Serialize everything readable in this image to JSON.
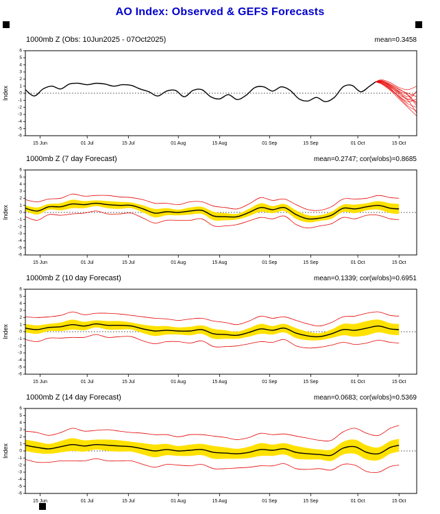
{
  "page": {
    "title": "AO Index: Observed & GEFS Forecasts"
  },
  "colors": {
    "title_blue": "#0000cc",
    "line_black": "#000000",
    "ensemble_red": "#e60000",
    "band_yellow": "#ffe100",
    "frame_black": "#000000"
  },
  "axis": {
    "ylabel": "Index",
    "ylim": [
      -6,
      6
    ],
    "yticks": [
      6,
      5,
      4,
      3,
      2,
      1,
      0,
      -1,
      -2,
      -3,
      -4,
      -5,
      -6
    ],
    "x_unit": "days since 10 Jun 2025",
    "x_domain_days": [
      0,
      133
    ],
    "xticks": [
      {
        "day": 5,
        "label": "15 Jun"
      },
      {
        "day": 21,
        "label": "01 Jul"
      },
      {
        "day": 35,
        "label": "15 Jul"
      },
      {
        "day": 52,
        "label": "01 Aug"
      },
      {
        "day": 66,
        "label": "15 Aug"
      },
      {
        "day": 83,
        "label": "01 Sep"
      },
      {
        "day": 97,
        "label": "15 Sep"
      },
      {
        "day": 113,
        "label": "01 Oct"
      },
      {
        "day": 127,
        "label": "15 Oct"
      }
    ],
    "grid": "zero-line-dotted-only"
  },
  "chart_data": [
    {
      "type": "line",
      "title": "1000mb Z (Obs: 10Jun2025 - 07Oct2025)",
      "stats": "mean=0.3458",
      "x": [
        0,
        3,
        6,
        9,
        12,
        15,
        18,
        21,
        24,
        27,
        30,
        33,
        36,
        39,
        42,
        45,
        48,
        51,
        54,
        57,
        60,
        63,
        66,
        69,
        72,
        75,
        78,
        81,
        84,
        87,
        90,
        93,
        96,
        99,
        102,
        105,
        108,
        111,
        114,
        117,
        119
      ],
      "series": [
        {
          "name": "observed",
          "color": "#000000",
          "values": [
            0.5,
            -0.4,
            0.6,
            1.0,
            0.6,
            1.3,
            1.4,
            1.2,
            1.4,
            1.3,
            1.0,
            1.2,
            1.1,
            0.6,
            0.2,
            -0.4,
            0.3,
            0.4,
            -0.5,
            0.4,
            0.5,
            -0.5,
            -0.8,
            -0.2,
            -0.9,
            -0.3,
            0.8,
            0.9,
            0.3,
            0.9,
            0.4,
            -0.8,
            -1.1,
            -0.6,
            -1.2,
            -0.6,
            0.9,
            1.1,
            0.2,
            1.0,
            1.6
          ]
        }
      ],
      "ensemble_members": {
        "name": "gefs-forecast-members",
        "color": "#e60000",
        "x": [
          119,
          121,
          124,
          127,
          130,
          133
        ],
        "members": [
          [
            1.6,
            1.9,
            1.5,
            0.8,
            0.5,
            1.0
          ],
          [
            1.6,
            1.7,
            1.2,
            0.5,
            0.0,
            -0.5
          ],
          [
            1.6,
            1.5,
            0.8,
            0.0,
            -0.8,
            -1.2
          ],
          [
            1.6,
            1.8,
            1.0,
            0.2,
            -0.5,
            0.2
          ],
          [
            1.6,
            1.4,
            0.5,
            -0.5,
            -1.5,
            -2.0
          ],
          [
            1.6,
            1.6,
            0.9,
            -0.2,
            -1.0,
            -2.8
          ],
          [
            1.6,
            1.3,
            0.4,
            -0.8,
            -2.0,
            -3.2
          ],
          [
            1.6,
            1.7,
            1.1,
            0.3,
            -0.3,
            -1.8
          ],
          [
            1.6,
            1.5,
            0.6,
            -0.4,
            -1.2,
            -0.8
          ],
          [
            1.6,
            1.8,
            1.3,
            0.6,
            -0.2,
            -1.5
          ],
          [
            1.6,
            1.4,
            0.7,
            -0.6,
            -1.8,
            -2.5
          ],
          [
            1.6,
            1.6,
            1.0,
            0.1,
            -0.9,
            0.3
          ]
        ]
      }
    },
    {
      "type": "line",
      "title": "1000mb Z (7 day Forecast)",
      "stats": "mean=0.2747; cor(w/obs)=0.8685",
      "x": [
        0,
        4,
        8,
        12,
        16,
        20,
        24,
        28,
        32,
        36,
        40,
        44,
        48,
        52,
        56,
        60,
        64,
        68,
        72,
        76,
        80,
        84,
        88,
        92,
        96,
        100,
        104,
        108,
        112,
        116,
        120,
        124,
        127
      ],
      "series": [
        {
          "name": "forecast-mean",
          "color": "#000000",
          "values": [
            0.6,
            0.2,
            0.8,
            0.8,
            1.2,
            1.1,
            1.3,
            1.1,
            1.0,
            1.0,
            0.5,
            -0.1,
            0.1,
            0.0,
            0.2,
            0.3,
            -0.5,
            -0.6,
            -0.6,
            0.0,
            0.7,
            0.4,
            0.7,
            -0.3,
            -0.9,
            -0.8,
            -0.4,
            0.6,
            0.5,
            0.8,
            1.0,
            0.6,
            0.5
          ]
        }
      ],
      "band": {
        "name": "ensemble-spread",
        "color": "#ffe100",
        "half_width": [
          0.4,
          0.5,
          0.4,
          0.5,
          0.6,
          0.5,
          0.4,
          0.5,
          0.5,
          0.4,
          0.5,
          0.6,
          0.5,
          0.4,
          0.5,
          0.5,
          0.6,
          0.5,
          0.4,
          0.5,
          0.6,
          0.5,
          0.5,
          0.6,
          0.5,
          0.4,
          0.5,
          0.5,
          0.6,
          0.5,
          0.6,
          0.7,
          0.7
        ]
      },
      "envelope": {
        "name": "ensemble-min-max",
        "color": "#e60000",
        "half_width": [
          1.2,
          1.3,
          1.1,
          1.2,
          1.4,
          1.2,
          1.1,
          1.3,
          1.2,
          1.1,
          1.3,
          1.4,
          1.2,
          1.1,
          1.3,
          1.2,
          1.4,
          1.3,
          1.1,
          1.2,
          1.4,
          1.3,
          1.2,
          1.4,
          1.3,
          1.1,
          1.2,
          1.3,
          1.4,
          1.2,
          1.4,
          1.5,
          1.5
        ]
      }
    },
    {
      "type": "line",
      "title": "1000mb Z (10 day Forecast)",
      "stats": "mean=0.1339; cor(w/obs)=0.6951",
      "x": [
        0,
        4,
        8,
        12,
        16,
        20,
        24,
        28,
        32,
        36,
        40,
        44,
        48,
        52,
        56,
        60,
        64,
        68,
        72,
        76,
        80,
        84,
        88,
        92,
        96,
        100,
        104,
        108,
        112,
        116,
        120,
        124,
        127
      ],
      "series": [
        {
          "name": "forecast-mean",
          "color": "#000000",
          "values": [
            0.5,
            0.3,
            0.6,
            0.7,
            1.0,
            0.8,
            1.1,
            0.9,
            0.9,
            0.8,
            0.4,
            0.1,
            0.2,
            0.1,
            0.1,
            0.3,
            -0.3,
            -0.4,
            -0.5,
            -0.1,
            0.4,
            0.2,
            0.5,
            -0.2,
            -0.6,
            -0.7,
            -0.3,
            0.3,
            0.2,
            0.5,
            0.8,
            0.4,
            0.3
          ]
        }
      ],
      "band": {
        "name": "ensemble-spread",
        "color": "#ffe100",
        "half_width": [
          0.6,
          0.6,
          0.5,
          0.6,
          0.7,
          0.6,
          0.5,
          0.6,
          0.6,
          0.5,
          0.6,
          0.7,
          0.6,
          0.5,
          0.6,
          0.6,
          0.7,
          0.6,
          0.5,
          0.6,
          0.7,
          0.6,
          0.6,
          0.7,
          0.6,
          0.5,
          0.6,
          0.8,
          0.9,
          1.0,
          0.9,
          0.8,
          0.8
        ]
      },
      "envelope": {
        "name": "ensemble-min-max",
        "color": "#e60000",
        "half_width": [
          1.6,
          1.7,
          1.5,
          1.6,
          1.8,
          1.6,
          1.5,
          1.7,
          1.6,
          1.5,
          1.7,
          1.8,
          1.6,
          1.5,
          1.7,
          1.6,
          1.8,
          1.7,
          1.5,
          1.6,
          1.8,
          1.7,
          1.6,
          1.8,
          1.7,
          1.5,
          1.6,
          1.8,
          2.0,
          2.1,
          2.0,
          1.9,
          1.9
        ]
      }
    },
    {
      "type": "line",
      "title": "1000mb Z (14 day Forecast)",
      "stats": "mean=0.0683; cor(w/obs)=0.5369",
      "x": [
        0,
        4,
        8,
        12,
        16,
        20,
        24,
        28,
        32,
        36,
        40,
        44,
        48,
        52,
        56,
        60,
        64,
        68,
        72,
        76,
        80,
        84,
        88,
        92,
        96,
        100,
        104,
        108,
        112,
        116,
        120,
        124,
        127
      ],
      "series": [
        {
          "name": "forecast-mean",
          "color": "#000000",
          "values": [
            0.8,
            0.5,
            0.3,
            0.6,
            0.9,
            0.7,
            0.9,
            0.8,
            0.7,
            0.6,
            0.3,
            0.0,
            0.2,
            0.0,
            0.1,
            0.2,
            -0.2,
            -0.3,
            -0.4,
            -0.2,
            0.2,
            0.1,
            0.3,
            -0.2,
            -0.4,
            -0.5,
            -0.6,
            0.4,
            0.6,
            -0.2,
            -0.4,
            0.5,
            0.8
          ]
        }
      ],
      "band": {
        "name": "ensemble-spread",
        "color": "#ffe100",
        "half_width": [
          0.8,
          0.8,
          0.7,
          0.8,
          0.9,
          0.8,
          0.7,
          0.8,
          0.8,
          0.7,
          0.8,
          0.9,
          0.8,
          0.7,
          0.8,
          0.8,
          0.9,
          0.8,
          0.7,
          0.8,
          0.9,
          0.8,
          0.8,
          0.9,
          0.8,
          0.7,
          0.8,
          0.9,
          1.0,
          1.0,
          0.9,
          0.9,
          0.9
        ]
      },
      "envelope": {
        "name": "ensemble-min-max",
        "color": "#e60000",
        "half_width": [
          2.0,
          2.1,
          1.9,
          2.0,
          2.3,
          2.1,
          2.0,
          2.2,
          2.1,
          2.0,
          2.2,
          2.3,
          2.1,
          2.0,
          2.2,
          2.1,
          2.3,
          2.2,
          2.0,
          2.1,
          2.3,
          2.2,
          2.1,
          2.3,
          2.2,
          2.0,
          2.1,
          2.3,
          2.6,
          2.7,
          2.6,
          2.7,
          2.8
        ]
      }
    }
  ]
}
